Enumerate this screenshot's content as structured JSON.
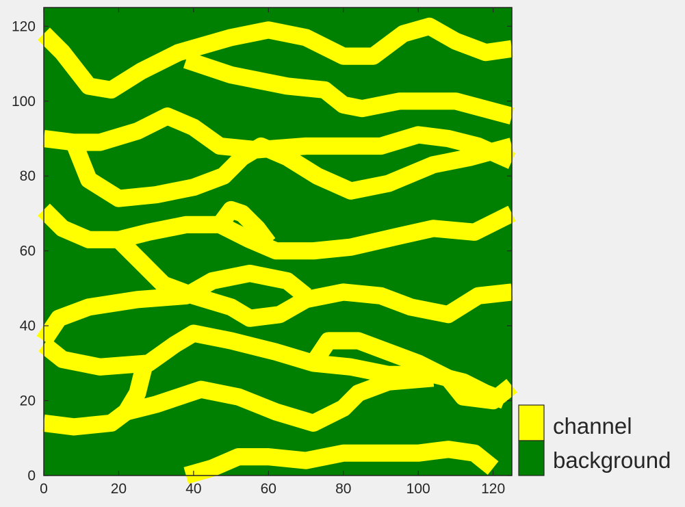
{
  "chart_data": {
    "type": "heatmap",
    "title": "",
    "xlabel": "",
    "ylabel": "",
    "xlim": [
      0,
      125
    ],
    "ylim": [
      0,
      125
    ],
    "x_ticks": [
      {
        "value": 0,
        "label": "0"
      },
      {
        "value": 20,
        "label": "20"
      },
      {
        "value": 40,
        "label": "40"
      },
      {
        "value": 60,
        "label": "60"
      },
      {
        "value": 80,
        "label": "80"
      },
      {
        "value": 100,
        "label": "100"
      },
      {
        "value": 120,
        "label": "120"
      }
    ],
    "y_ticks": [
      {
        "value": 0,
        "label": "0"
      },
      {
        "value": 20,
        "label": "20"
      },
      {
        "value": 40,
        "label": "40"
      },
      {
        "value": 60,
        "label": "60"
      },
      {
        "value": 80,
        "label": "80"
      },
      {
        "value": 100,
        "label": "100"
      },
      {
        "value": 120,
        "label": "120"
      }
    ],
    "legend_position": "bottom-right, outside plot",
    "categories": [
      {
        "label": "channel",
        "color": "#ffff00"
      },
      {
        "label": "background",
        "color": "#008000"
      }
    ],
    "background_color": "#008000",
    "channel_color": "#ffff00",
    "channel_halfwidth": 2,
    "channels": [
      {
        "points": [
          [
            0,
            118
          ],
          [
            5,
            113
          ],
          [
            12,
            104
          ],
          [
            18,
            103
          ],
          [
            26,
            108
          ],
          [
            36,
            113
          ],
          [
            50,
            117
          ],
          [
            60,
            119
          ],
          [
            70,
            117
          ],
          [
            80,
            112
          ],
          [
            88,
            112
          ],
          [
            96,
            118
          ],
          [
            103,
            120
          ],
          [
            110,
            116
          ],
          [
            118,
            113
          ],
          [
            125,
            114
          ]
        ]
      },
      {
        "points": [
          [
            38,
            111
          ],
          [
            50,
            107
          ],
          [
            65,
            104
          ],
          [
            75,
            103
          ],
          [
            80,
            99
          ],
          [
            85,
            98
          ],
          [
            95,
            100
          ],
          [
            110,
            100
          ],
          [
            125,
            96
          ]
        ]
      },
      {
        "points": [
          [
            0,
            90
          ],
          [
            8,
            89
          ],
          [
            15,
            89
          ],
          [
            25,
            92
          ],
          [
            33,
            96
          ],
          [
            40,
            93
          ],
          [
            47,
            88
          ],
          [
            57,
            87
          ],
          [
            70,
            88
          ],
          [
            80,
            88
          ],
          [
            90,
            88
          ],
          [
            100,
            91
          ],
          [
            108,
            90
          ],
          [
            116,
            88
          ],
          [
            125,
            84
          ]
        ]
      },
      {
        "points": [
          [
            8,
            89
          ],
          [
            12,
            79
          ],
          [
            20,
            74
          ],
          [
            30,
            75
          ],
          [
            40,
            77
          ],
          [
            48,
            80
          ],
          [
            53,
            85
          ],
          [
            58,
            88
          ],
          [
            65,
            85
          ],
          [
            73,
            80
          ],
          [
            82,
            76
          ],
          [
            92,
            78
          ],
          [
            104,
            83
          ],
          [
            114,
            85
          ],
          [
            125,
            88
          ]
        ]
      },
      {
        "points": [
          [
            0,
            71
          ],
          [
            5,
            66
          ],
          [
            12,
            63
          ],
          [
            20,
            63
          ],
          [
            28,
            65
          ],
          [
            38,
            67
          ],
          [
            47,
            67
          ],
          [
            55,
            63
          ],
          [
            62,
            60
          ],
          [
            72,
            60
          ],
          [
            82,
            61
          ],
          [
            95,
            64
          ],
          [
            104,
            66
          ],
          [
            115,
            65
          ],
          [
            125,
            70
          ]
        ]
      },
      {
        "points": [
          [
            47,
            67
          ],
          [
            50,
            71
          ],
          [
            53,
            70
          ],
          [
            57,
            66
          ],
          [
            60,
            62
          ]
        ]
      },
      {
        "points": [
          [
            20,
            63
          ],
          [
            26,
            57
          ],
          [
            32,
            51
          ],
          [
            40,
            48
          ],
          [
            50,
            45
          ],
          [
            55,
            42
          ],
          [
            63,
            43
          ],
          [
            70,
            47
          ],
          [
            80,
            49
          ],
          [
            90,
            48
          ],
          [
            98,
            45
          ],
          [
            108,
            43
          ],
          [
            116,
            48
          ],
          [
            125,
            49
          ]
        ]
      },
      {
        "points": [
          [
            0,
            36
          ],
          [
            4,
            42
          ],
          [
            12,
            45
          ],
          [
            25,
            47
          ],
          [
            38,
            48
          ],
          [
            45,
            52
          ],
          [
            55,
            54
          ],
          [
            65,
            52
          ],
          [
            70,
            48
          ]
        ]
      },
      {
        "points": [
          [
            0,
            35
          ],
          [
            5,
            31
          ],
          [
            15,
            29
          ],
          [
            28,
            30
          ],
          [
            35,
            35
          ],
          [
            40,
            38
          ],
          [
            50,
            36
          ],
          [
            62,
            33
          ],
          [
            72,
            30
          ],
          [
            82,
            29
          ],
          [
            92,
            27
          ],
          [
            104,
            27
          ],
          [
            112,
            25
          ],
          [
            118,
            22
          ],
          [
            123,
            20
          ]
        ]
      },
      {
        "points": [
          [
            27,
            30
          ],
          [
            25,
            22
          ],
          [
            22,
            17
          ],
          [
            30,
            19
          ],
          [
            42,
            23
          ],
          [
            52,
            21
          ],
          [
            62,
            17
          ],
          [
            72,
            14
          ],
          [
            80,
            18
          ],
          [
            84,
            22
          ],
          [
            92,
            25
          ],
          [
            104,
            26
          ]
        ]
      },
      {
        "points": [
          [
            72,
            30
          ],
          [
            76,
            36
          ],
          [
            84,
            36
          ],
          [
            92,
            33
          ],
          [
            100,
            30
          ],
          [
            108,
            26
          ],
          [
            112,
            21
          ],
          [
            120,
            20
          ],
          [
            125,
            24
          ]
        ]
      },
      {
        "points": [
          [
            0,
            14
          ],
          [
            8,
            13
          ],
          [
            18,
            14
          ],
          [
            22,
            17
          ]
        ]
      },
      {
        "points": [
          [
            38,
            0
          ],
          [
            45,
            2
          ],
          [
            52,
            5
          ],
          [
            60,
            5
          ],
          [
            70,
            4
          ],
          [
            80,
            6
          ],
          [
            90,
            6
          ],
          [
            100,
            6
          ],
          [
            108,
            7
          ],
          [
            115,
            6
          ],
          [
            120,
            2
          ]
        ]
      }
    ]
  },
  "axes": {
    "x": {
      "ticks": [
        "0",
        "20",
        "40",
        "60",
        "80",
        "100",
        "120"
      ]
    },
    "y": {
      "ticks": [
        "0",
        "20",
        "40",
        "60",
        "80",
        "100",
        "120"
      ]
    }
  },
  "legend": {
    "channel_label": "channel",
    "background_label": "background"
  }
}
